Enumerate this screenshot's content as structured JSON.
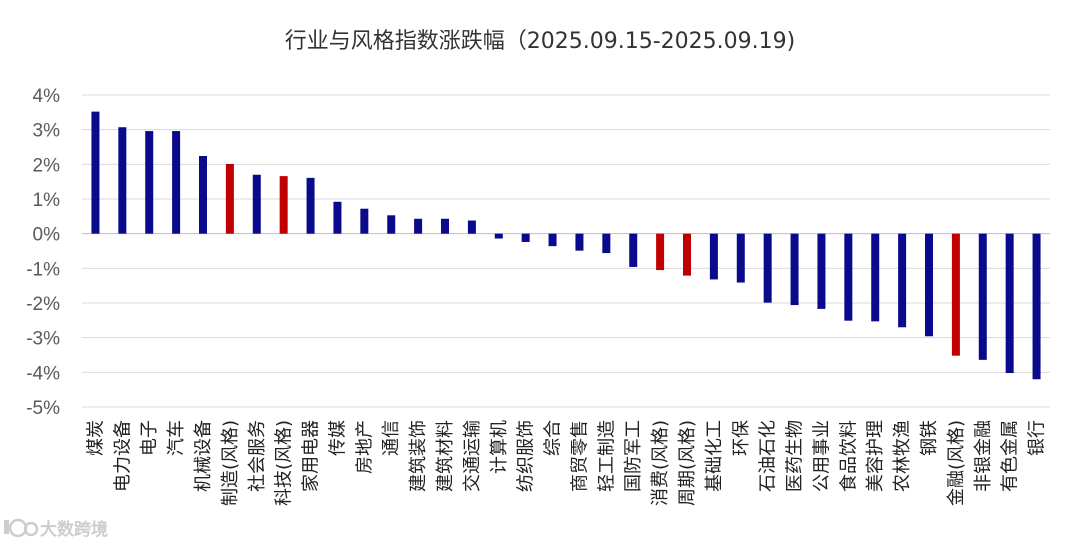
{
  "chart_data": {
    "type": "bar",
    "title": "行业与风格指数涨跌幅（2025.09.15-2025.09.19)",
    "xlabel": "",
    "ylabel": "",
    "ylim": [
      -5,
      4
    ],
    "yticks": [
      4,
      3,
      2,
      1,
      0,
      -1,
      -2,
      -3,
      -4,
      -5
    ],
    "ytick_labels": [
      "4%",
      "3%",
      "2%",
      "1%",
      "0%",
      "-1%",
      "-2%",
      "-3%",
      "-4%",
      "-5%"
    ],
    "grid": true,
    "legend": "none",
    "colors": {
      "industry": "#0a0a8c",
      "style": "#c00000"
    },
    "categories": [
      "煤炭",
      "电力设备",
      "电子",
      "汽车",
      "机械设备",
      "制造(风格)",
      "社会服务",
      "科技(风格)",
      "家用电器",
      "传媒",
      "房地产",
      "通信",
      "建筑装饰",
      "建筑材料",
      "交通运输",
      "计算机",
      "纺织服饰",
      "综合",
      "商贸零售",
      "轻工制造",
      "国防军工",
      "消费(风格)",
      "周期(风格)",
      "基础化工",
      "环保",
      "石油石化",
      "医药生物",
      "公用事业",
      "食品饮料",
      "美容护理",
      "农林牧渔",
      "钢铁",
      "金融(风格)",
      "非银金融",
      "有色金属",
      "银行"
    ],
    "values": [
      3.52,
      3.07,
      2.96,
      2.96,
      2.24,
      2.01,
      1.7,
      1.66,
      1.61,
      0.92,
      0.72,
      0.53,
      0.43,
      0.43,
      0.38,
      -0.14,
      -0.24,
      -0.36,
      -0.49,
      -0.56,
      -0.96,
      -1.05,
      -1.21,
      -1.32,
      -1.41,
      -1.99,
      -2.06,
      -2.17,
      -2.51,
      -2.53,
      -2.7,
      -2.96,
      -3.52,
      -3.64,
      -4.02,
      -4.2
    ],
    "is_style": [
      false,
      false,
      false,
      false,
      false,
      true,
      false,
      true,
      false,
      false,
      false,
      false,
      false,
      false,
      false,
      false,
      false,
      false,
      false,
      false,
      false,
      true,
      true,
      false,
      false,
      false,
      false,
      false,
      false,
      false,
      false,
      false,
      true,
      false,
      false,
      false
    ]
  },
  "watermark": {
    "text": "大数跨境",
    "icon": "watermark-logo-icon"
  }
}
